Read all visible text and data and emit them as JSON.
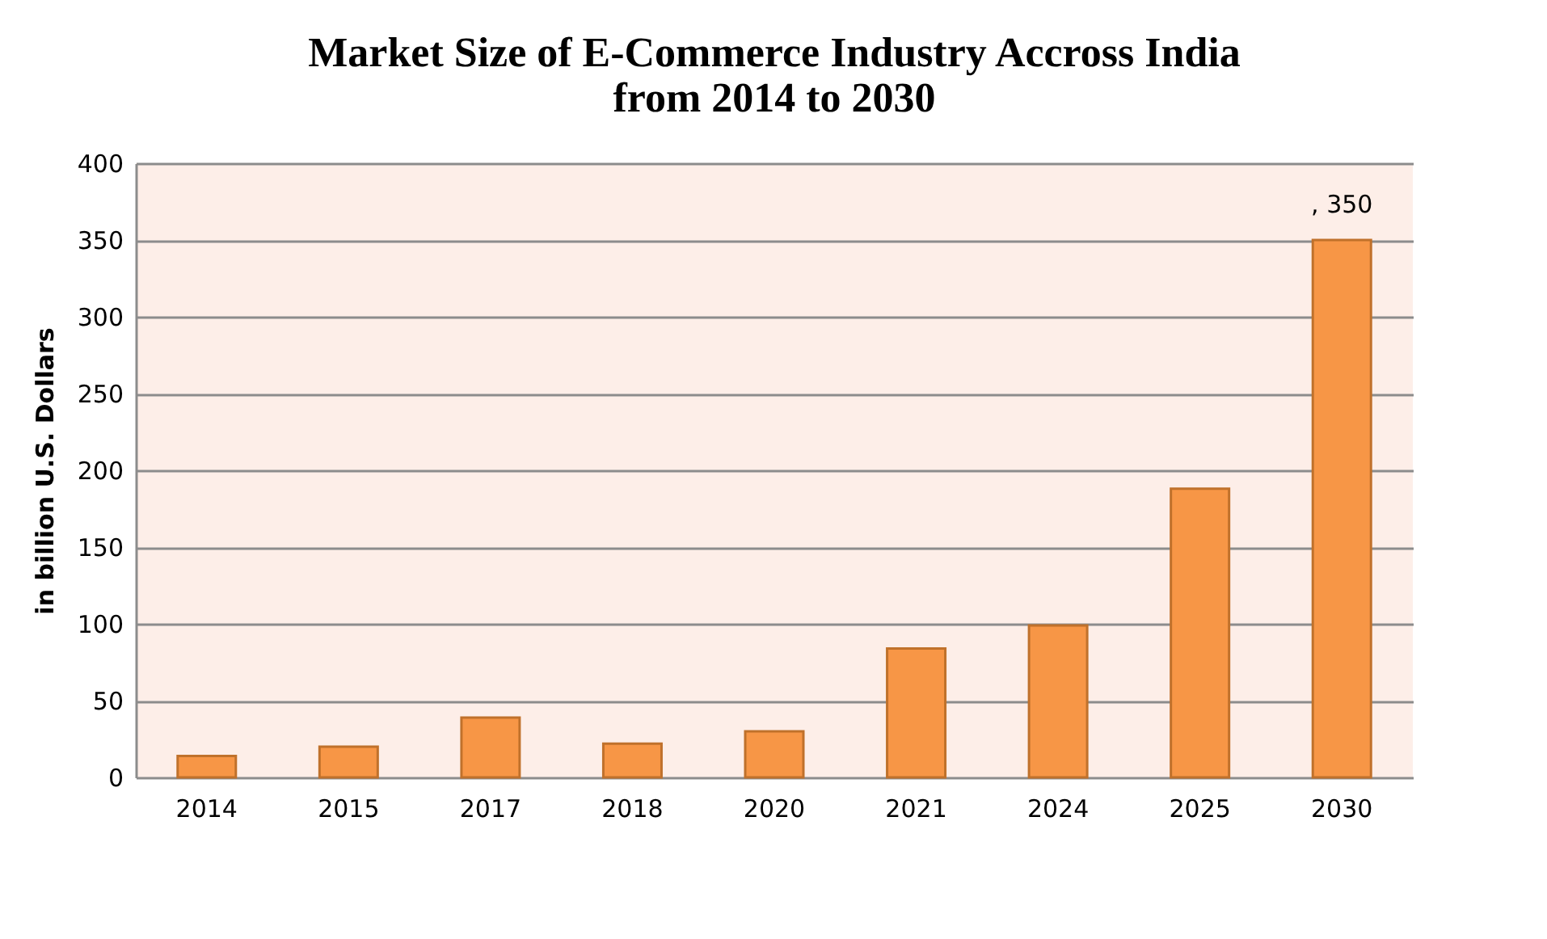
{
  "chart_data": {
    "type": "bar",
    "title": [
      "Market Size of E-Commerce Industry Accross India",
      "from 2014 to 2030"
    ],
    "ylabel": "in billion U.S. Dollars",
    "categories": [
      "2014",
      "2015",
      "2017",
      "2018",
      "2020",
      "2021",
      "2024",
      "2025",
      "2030"
    ],
    "values": [
      14,
      20,
      39,
      22,
      30,
      84,
      99,
      188,
      350
    ],
    "value_labels": [
      null,
      null,
      null,
      null,
      null,
      null,
      null,
      null,
      ", 350"
    ],
    "color": "#f79646",
    "ylim": [
      0,
      400
    ],
    "yticks": [
      0,
      50,
      100,
      150,
      200,
      250,
      300,
      350,
      400
    ],
    "grid": "y"
  }
}
